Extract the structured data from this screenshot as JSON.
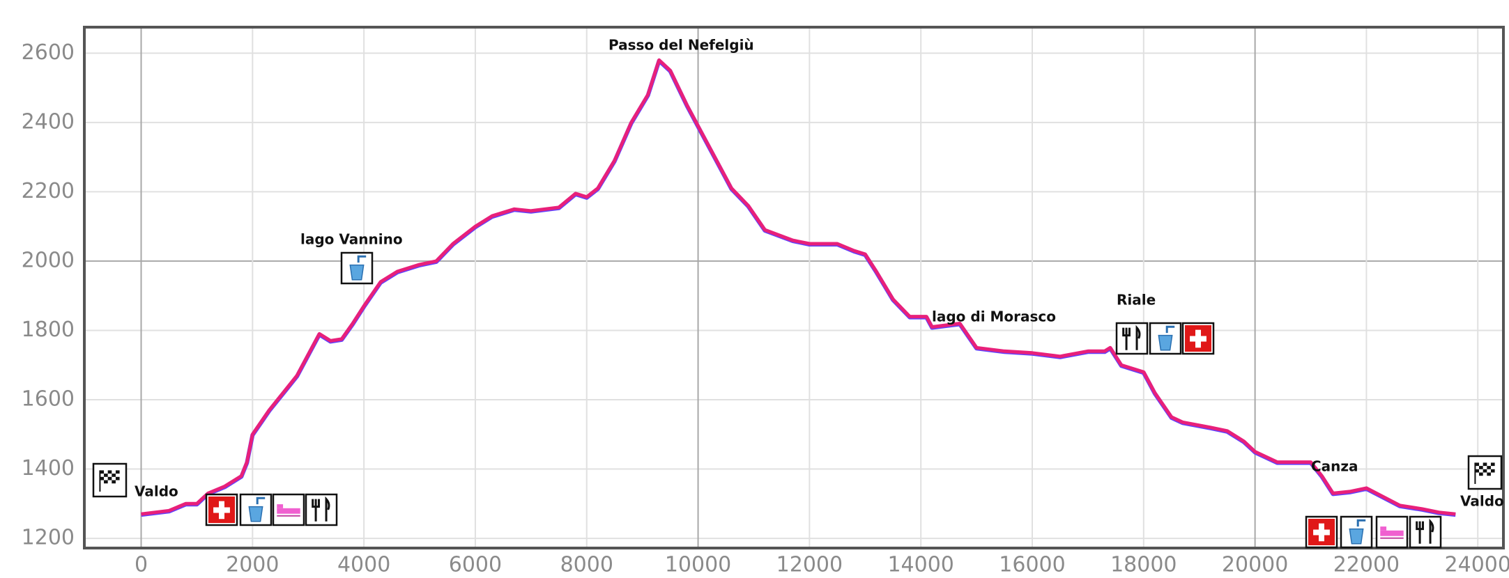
{
  "chart_data": {
    "type": "line",
    "series": [
      {
        "color": "#e8207a",
        "x": [
          0,
          500,
          800,
          1000,
          1200,
          1500,
          1800,
          1900,
          2000,
          2300,
          2600,
          2800,
          3000,
          3200,
          3400,
          3600,
          3800,
          4000,
          4300,
          4600,
          5000,
          5300,
          5600,
          6000,
          6300,
          6700,
          7000,
          7500,
          7800,
          8000,
          8200,
          8500,
          8800,
          9100,
          9300,
          9500,
          9800,
          10200,
          10600,
          10900,
          11200,
          11700,
          12000,
          12500,
          12800,
          13000,
          13200,
          13500,
          13800,
          14100,
          14200,
          14700,
          15000,
          15500,
          16000,
          16500,
          17000,
          17300,
          17400,
          17600,
          18000,
          18200,
          18500,
          18700,
          19200,
          19500,
          19800,
          20000,
          20400,
          21000,
          21200,
          21400,
          21700,
          22000,
          22300,
          22600,
          23000,
          23300,
          23600
        ],
        "values": [
          1270,
          1280,
          1300,
          1300,
          1330,
          1350,
          1380,
          1420,
          1500,
          1570,
          1630,
          1670,
          1730,
          1790,
          1770,
          1775,
          1820,
          1870,
          1940,
          1970,
          1990,
          2000,
          2050,
          2100,
          2130,
          2150,
          2145,
          2155,
          2195,
          2185,
          2210,
          2290,
          2400,
          2480,
          2580,
          2550,
          2450,
          2330,
          2210,
          2160,
          2090,
          2060,
          2050,
          2050,
          2030,
          2020,
          1970,
          1890,
          1840,
          1840,
          1810,
          1820,
          1750,
          1740,
          1735,
          1725,
          1740,
          1740,
          1750,
          1700,
          1680,
          1620,
          1550,
          1535,
          1520,
          1510,
          1480,
          1450,
          1420,
          1420,
          1380,
          1330,
          1335,
          1345,
          1320,
          1295,
          1285,
          1275,
          1270
        ]
      }
    ],
    "xlim": [
      -1020,
      24460
    ],
    "ylim": [
      1172,
      2675
    ],
    "xticks": [
      0,
      2000,
      4000,
      6000,
      8000,
      10000,
      12000,
      14000,
      16000,
      18000,
      20000,
      22000,
      24000
    ],
    "yticks": [
      1200,
      1400,
      1600,
      1800,
      2000,
      2200,
      2400,
      2600
    ],
    "grid": true,
    "annotations": [
      "Valdo",
      "lago Vannino",
      "Passo del Nefelgiù",
      "lago di Morasco",
      "Riale",
      "Canza",
      "Valdo"
    ]
  }
}
